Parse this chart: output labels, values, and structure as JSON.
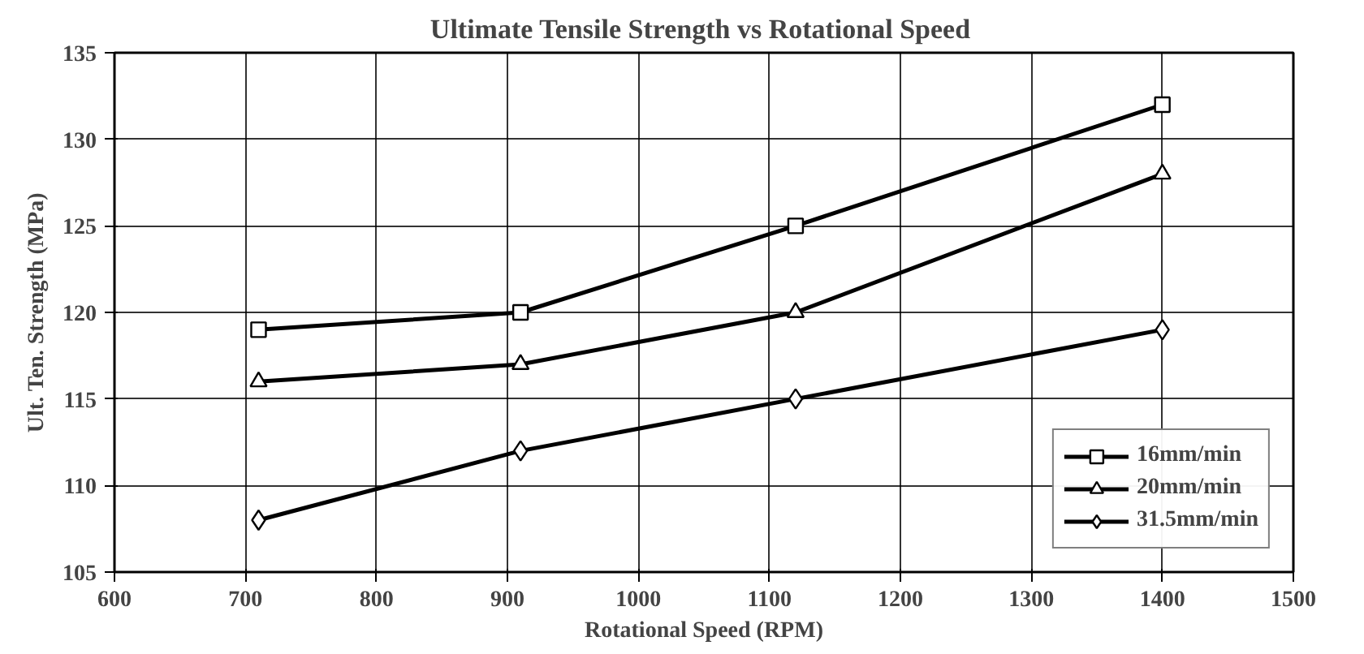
{
  "chart_data": {
    "type": "line",
    "title": "Ultimate Tensile Strength  vs Rotational Speed",
    "xlabel": "Rotational Speed (RPM)",
    "ylabel": "Ult. Ten. Strength (MPa)",
    "x": [
      710,
      910,
      1120,
      1400
    ],
    "series": [
      {
        "name": "16mm/min",
        "color": "#000000",
        "marker": "square",
        "values": [
          119,
          120,
          125,
          132
        ]
      },
      {
        "name": "20mm/min",
        "color": "#000000",
        "marker": "triangle",
        "values": [
          116,
          117,
          120,
          128
        ]
      },
      {
        "name": "31.5mm/min",
        "color": "#000000",
        "marker": "diamond",
        "values": [
          108,
          112,
          115,
          119
        ]
      }
    ],
    "xlim": [
      600,
      1500
    ],
    "xticks": [
      600,
      700,
      800,
      900,
      1000,
      1100,
      1200,
      1300,
      1400,
      1500
    ],
    "ylim": [
      105,
      135
    ],
    "yticks": [
      105,
      110,
      115,
      120,
      125,
      130,
      135
    ],
    "grid": true,
    "legend": "bottom right",
    "line_style": "solid"
  }
}
